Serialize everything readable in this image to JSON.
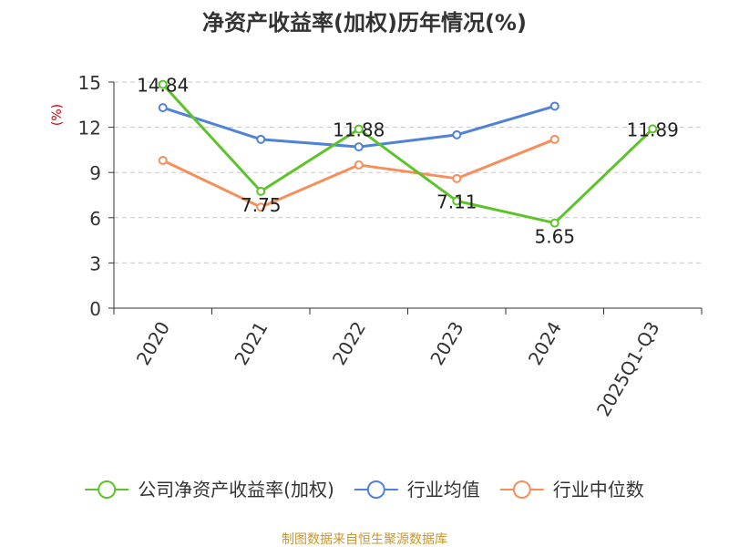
{
  "chart_data": {
    "type": "line",
    "title": "净资产收益率(加权)历年情况(%)",
    "ylabel": "(%)",
    "xlabel": "",
    "categories": [
      "2020",
      "2021",
      "2022",
      "2023",
      "2024",
      "2025Q1-Q3"
    ],
    "ylim": [
      0,
      15
    ],
    "yticks": [
      0,
      3,
      6,
      9,
      12,
      15
    ],
    "grid": true,
    "legend_position": "bottom",
    "series": [
      {
        "name": "公司净资产收益率(加权)",
        "color": "#5cc42a",
        "values": [
          14.84,
          7.75,
          11.88,
          7.11,
          5.65,
          11.89
        ],
        "labels": [
          "14.84",
          "7.75",
          "11.88",
          "7.11",
          "5.65",
          "11.89"
        ]
      },
      {
        "name": "行业均值",
        "color": "#4f82d8",
        "values": [
          13.3,
          11.2,
          10.7,
          11.5,
          13.4,
          null
        ]
      },
      {
        "name": "行业中位数",
        "color": "#f58f5c",
        "values": [
          9.8,
          6.7,
          9.5,
          8.6,
          11.2,
          null
        ]
      }
    ]
  },
  "footer": {
    "source": "制图数据来自恒生聚源数据库",
    "source_color": "#c8962c"
  }
}
